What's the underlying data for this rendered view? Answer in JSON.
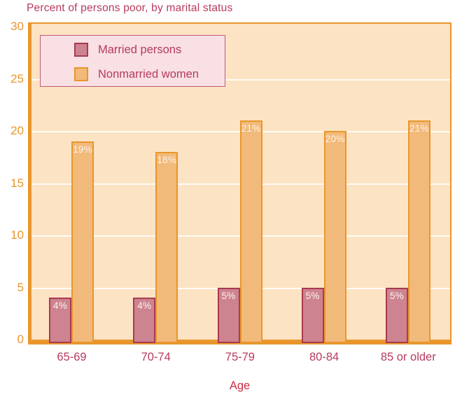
{
  "title": "Percent of persons poor, by marital status",
  "chart_data": {
    "type": "bar",
    "title": "Percent of persons poor, by marital status",
    "xlabel": "Age",
    "ylabel": "",
    "categories": [
      "65-69",
      "70-74",
      "75-79",
      "80-84",
      "85 or older"
    ],
    "series": [
      {
        "name": "Married persons",
        "values": [
          4,
          4,
          5,
          5,
          5
        ],
        "bar_labels": [
          "4%",
          "4%",
          "5%",
          "5%",
          "5%"
        ],
        "fill": "#cd8490",
        "border": "#a93a52"
      },
      {
        "name": "Nonmarried women",
        "values": [
          19,
          18,
          21,
          20,
          21
        ],
        "bar_labels": [
          "19%",
          "18%",
          "21%",
          "20%",
          "21%"
        ],
        "fill": "#f2ba7a",
        "border": "#e8962c"
      }
    ],
    "ylim": [
      0,
      30
    ],
    "yticks": [
      0,
      5,
      10,
      15,
      20,
      25,
      30
    ],
    "ytick_labels": [
      "0",
      "5",
      "10",
      "15",
      "20",
      "25",
      "30"
    ],
    "grid": true,
    "legend_position": "top-left"
  },
  "colors": {
    "accent_maroon": "#b73a5c",
    "accent_orange": "#e8962c",
    "plot_background": "#fce3c3",
    "gridline": "#ffffff",
    "legend_background": "#f8e0e5",
    "bar_value_text": "#fdf3f1",
    "married_fill": "#cd8490",
    "married_border": "#a93a52",
    "nonmarried_fill": "#f2ba7a",
    "nonmarried_border": "#e8962c"
  }
}
